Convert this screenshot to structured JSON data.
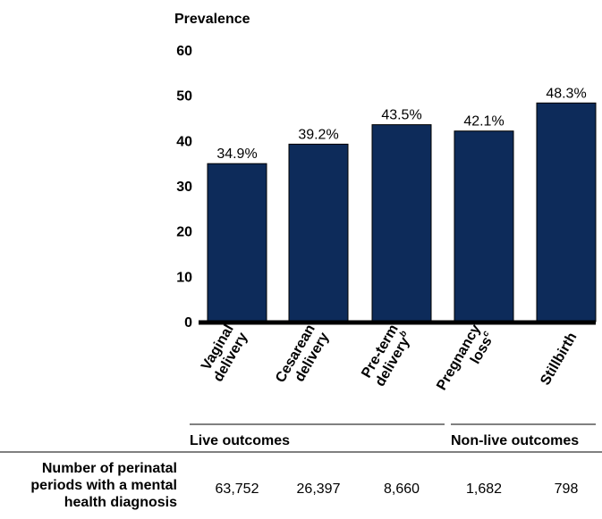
{
  "chart_data": {
    "type": "bar",
    "ylabel": "Prevalence",
    "ylim": [
      0,
      60
    ],
    "yticks": [
      0,
      10,
      20,
      30,
      40,
      50,
      60
    ],
    "grid": false,
    "legend": "none",
    "bar_color": "#0d2b5a",
    "categories": [
      [
        "Vaginal",
        "delivery"
      ],
      [
        "Cesarean",
        "delivery"
      ],
      [
        "Pre-term",
        "delivery"
      ],
      [
        "Pregnancy",
        "loss"
      ],
      [
        "Stillbirth"
      ]
    ],
    "category_superscripts": [
      "",
      "",
      "b",
      "c",
      ""
    ],
    "values": [
      34.9,
      39.2,
      43.5,
      42.1,
      48.3
    ],
    "data_labels": [
      "34.9%",
      "39.2%",
      "43.5%",
      "42.1%",
      "48.3%"
    ],
    "groups": [
      {
        "label": "Live outcomes",
        "categories": [
          "Vaginal delivery",
          "Cesarean delivery",
          "Pre-term delivery"
        ]
      },
      {
        "label": "Non-live outcomes",
        "categories": [
          "Pregnancy loss",
          "Stillbirth"
        ]
      }
    ]
  },
  "table": {
    "row_header": [
      "Number of perinatal",
      "periods with a mental",
      "health diagnosis"
    ],
    "counts": [
      "63,752",
      "26,397",
      "8,660",
      "1,682",
      "798"
    ]
  }
}
